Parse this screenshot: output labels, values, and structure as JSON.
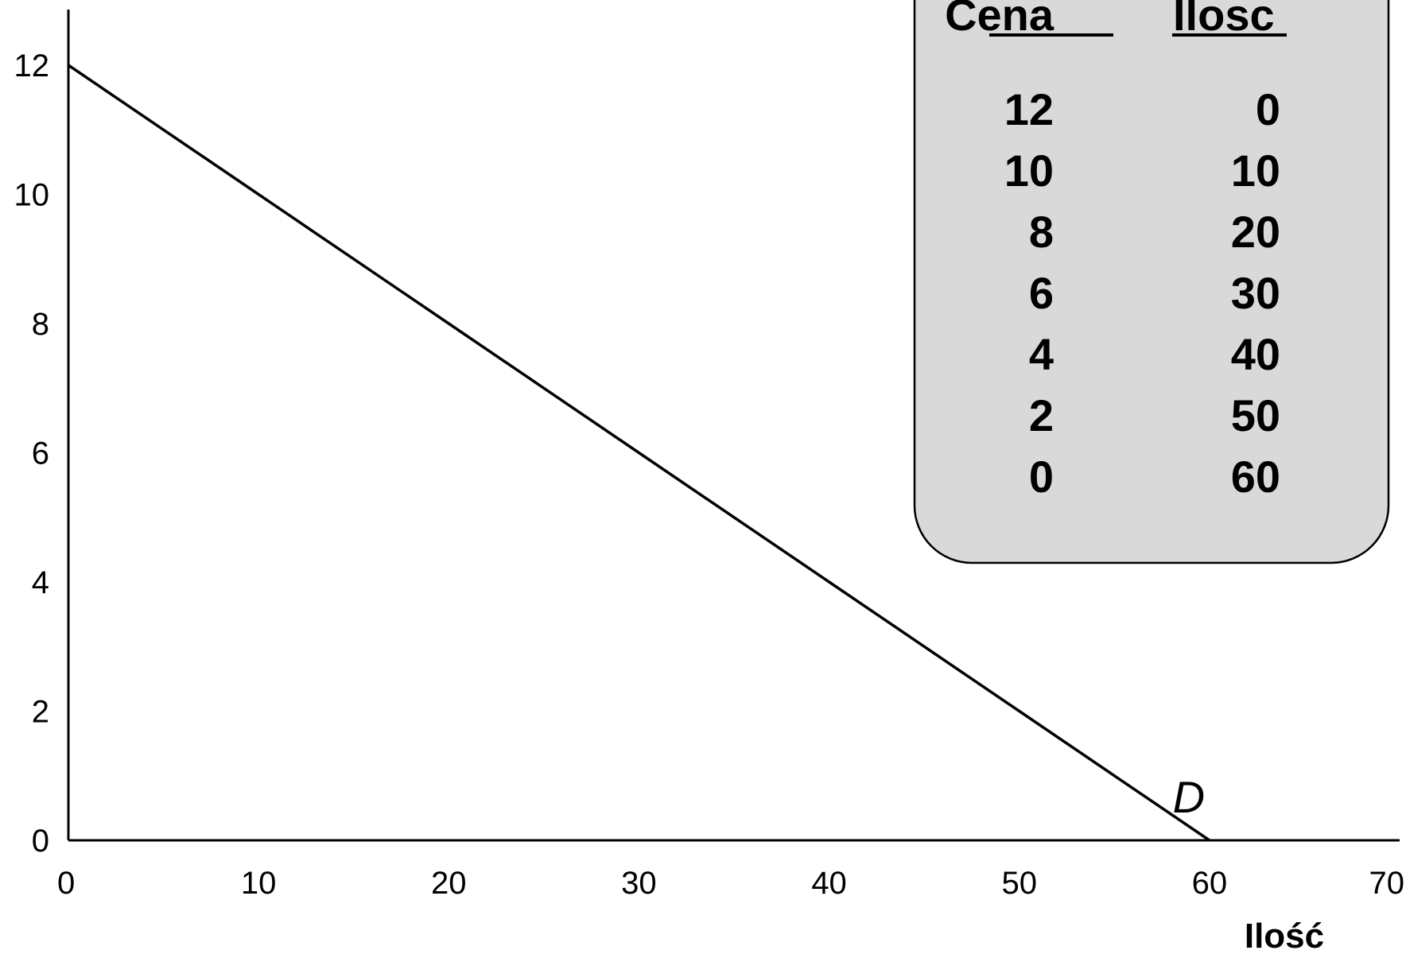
{
  "chart_data": {
    "type": "line",
    "title": "",
    "xlabel": "Ilość",
    "ylabel": "",
    "xlim": [
      0,
      70
    ],
    "ylim": [
      0,
      12
    ],
    "x_ticks": [
      "0",
      "10",
      "20",
      "30",
      "40",
      "50",
      "60",
      "70"
    ],
    "y_ticks": [
      "0",
      "2",
      "4",
      "6",
      "8",
      "10",
      "12"
    ],
    "grid": false,
    "series": [
      {
        "name": "D",
        "x": [
          0,
          10,
          20,
          30,
          40,
          50,
          60
        ],
        "y": [
          12,
          10,
          8,
          6,
          4,
          2,
          0
        ]
      }
    ],
    "table": {
      "headers": [
        "Cena",
        "Ilosc"
      ],
      "rows": [
        [
          "12",
          "0"
        ],
        [
          "10",
          "10"
        ],
        [
          "8",
          "20"
        ],
        [
          "6",
          "30"
        ],
        [
          "4",
          "40"
        ],
        [
          "2",
          "50"
        ],
        [
          "0",
          "60"
        ]
      ]
    }
  },
  "colors": {
    "line": "#000000",
    "table_fill": "#d9d9d9",
    "background": "#ffffff"
  }
}
